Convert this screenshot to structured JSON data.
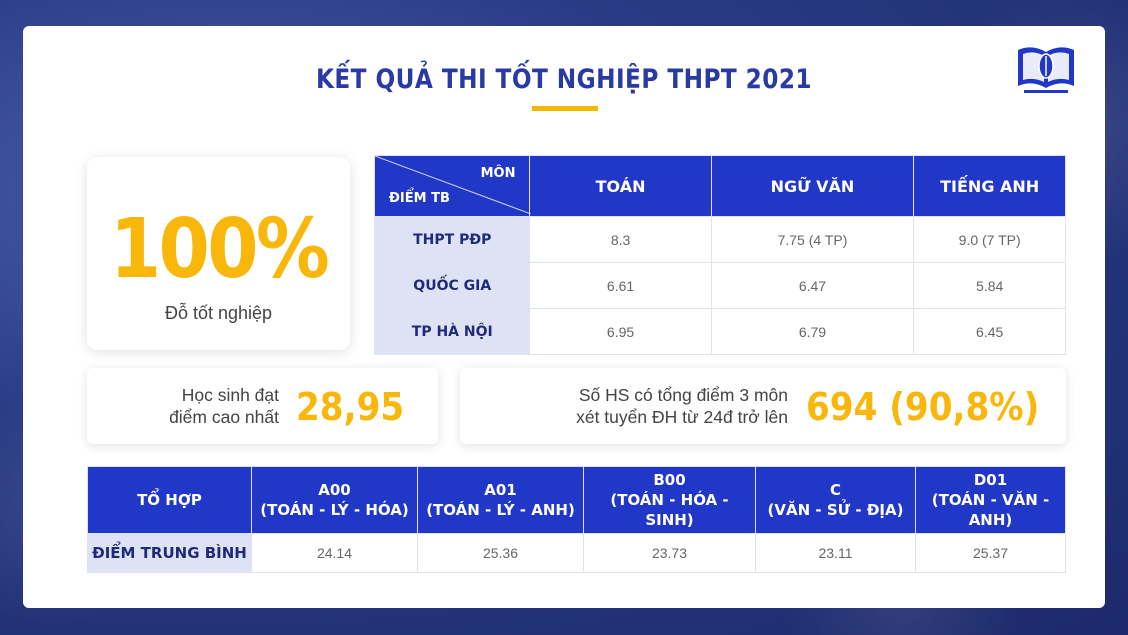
{
  "title": "KẾT QUẢ THI TỐT NGHIỆP THPT 2021",
  "colors": {
    "accent": "#f8b70a",
    "header_blue": "#2137c8",
    "row_tint": "#dde3f5"
  },
  "logo": {
    "icon": "book-pen-logo-icon"
  },
  "pass_rate": {
    "value": "100%",
    "label": "Đỗ tốt nghiệp"
  },
  "scores_table": {
    "corner_top": "MÔN",
    "corner_bottom": "ĐIỂM TB",
    "columns": [
      "TOÁN",
      "NGỮ VĂN",
      "TIẾNG ANH"
    ],
    "rows": [
      {
        "label": "THPT PĐP",
        "values": [
          "8.3",
          "7.75 (4 TP)",
          "9.0 (7 TP)"
        ]
      },
      {
        "label": "QUỐC GIA",
        "values": [
          "6.61",
          "6.47",
          "5.84"
        ]
      },
      {
        "label": "TP HÀ NỘI",
        "values": [
          "6.95",
          "6.79",
          "6.45"
        ]
      }
    ]
  },
  "top_score": {
    "line1": "Học sinh đạt",
    "line2": "điểm cao nhất",
    "value": "28,95"
  },
  "over24": {
    "line1": "Số HS có tổng điểm 3 môn",
    "line2": "xét tuyển ĐH từ 24đ trở lên",
    "value": "694 (90,8%)"
  },
  "combo_table": {
    "header_label": "TỔ HỢP",
    "row_label": "ĐIỂM TRUNG BÌNH",
    "columns": [
      {
        "code": "A00",
        "subjects": "(TOÁN - LÝ - HÓA)",
        "avg": "24.14"
      },
      {
        "code": "A01",
        "subjects": "(TOÁN - LÝ - ANH)",
        "avg": "25.36"
      },
      {
        "code": "B00",
        "subjects": "(TOÁN - HÓA - SINH)",
        "avg": "23.73"
      },
      {
        "code": "C",
        "subjects": "(VĂN - SỬ - ĐỊA)",
        "avg": "23.11"
      },
      {
        "code": "D01",
        "subjects": "(TOÁN - VĂN - ANH)",
        "avg": "25.37"
      }
    ]
  }
}
